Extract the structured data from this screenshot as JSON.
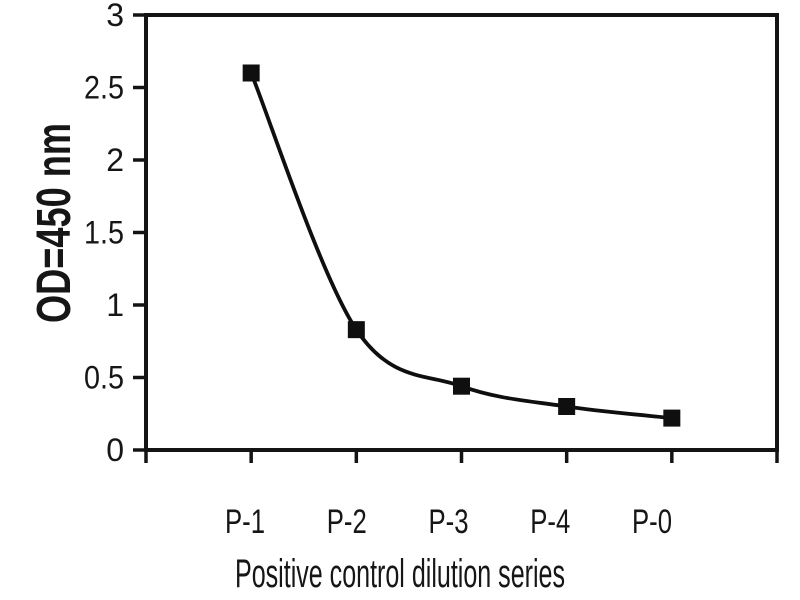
{
  "chart_data": {
    "type": "line",
    "title": "",
    "xlabel": "Positive control dilution series",
    "ylabel": "OD=450 nm",
    "categories": [
      "P-1",
      "P-2",
      "P-3",
      "P-4",
      "P-0"
    ],
    "values": [
      2.6,
      0.83,
      0.44,
      0.3,
      0.22
    ],
    "series": [
      {
        "name": "Positive control dilution series",
        "values": [
          2.6,
          0.83,
          0.44,
          0.3,
          0.22
        ]
      }
    ],
    "ylim": [
      0,
      3
    ],
    "yticks": [
      0,
      0.5,
      1,
      1.5,
      2,
      2.5,
      3
    ],
    "ytick_labels": [
      "0",
      "0.5",
      "1",
      "1.5",
      "2",
      "2.5",
      "3"
    ],
    "x_tick_count": 7,
    "grid": false,
    "legend": null,
    "smooth": true,
    "marker": "filled-square",
    "colors": {
      "line": "#0f0f0f",
      "marker": "#0f0f0f",
      "frame": "#141414",
      "text": "#161616",
      "background": "#ffffff"
    }
  }
}
